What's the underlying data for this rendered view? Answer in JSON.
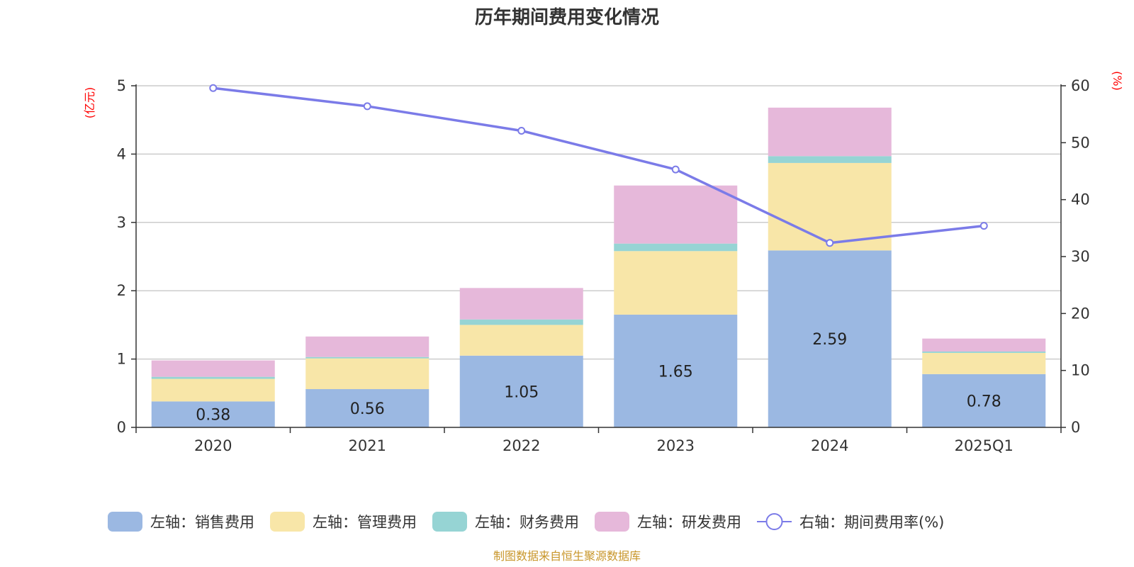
{
  "chart_data": {
    "type": "bar",
    "title": "历年期间费用变化情况",
    "categories": [
      "2020",
      "2021",
      "2022",
      "2023",
      "2024",
      "2025Q1"
    ],
    "left_axis": {
      "unit": "(亿元)",
      "ylim": [
        0,
        5
      ],
      "ticks": [
        "0",
        "1",
        "2",
        "3",
        "4",
        "5"
      ]
    },
    "right_axis": {
      "unit": "(%)",
      "ylim": [
        0,
        60
      ],
      "ticks": [
        "0",
        "10",
        "20",
        "30",
        "40",
        "50",
        "60"
      ]
    },
    "series": [
      {
        "name": "左轴：销售费用",
        "axis": "left",
        "kind": "bar",
        "color": "#9bb8e2",
        "values": [
          0.38,
          0.56,
          1.05,
          1.65,
          2.59,
          0.78
        ],
        "labels": [
          "0.38",
          "0.56",
          "1.05",
          "1.65",
          "2.59",
          "0.78"
        ]
      },
      {
        "name": "左轴：管理费用",
        "axis": "left",
        "kind": "bar",
        "color": "#f8e6a8",
        "values": [
          0.33,
          0.45,
          0.45,
          0.93,
          1.28,
          0.31
        ]
      },
      {
        "name": "左轴：财务费用",
        "axis": "left",
        "kind": "bar",
        "color": "#96d4d4",
        "values": [
          0.03,
          0.02,
          0.08,
          0.11,
          0.1,
          0.02
        ]
      },
      {
        "name": "左轴：研发费用",
        "axis": "left",
        "kind": "bar",
        "color": "#e6b8da",
        "values": [
          0.24,
          0.3,
          0.46,
          0.85,
          0.71,
          0.19
        ]
      },
      {
        "name": "右轴：期间费用率(%)",
        "axis": "right",
        "kind": "line",
        "color": "#7b7be8",
        "values": [
          59.6,
          56.4,
          52.1,
          45.3,
          32.4,
          35.4
        ]
      }
    ],
    "grid": true,
    "legend_position": "bottom"
  },
  "source_note": "制图数据来自恒生聚源数据库"
}
